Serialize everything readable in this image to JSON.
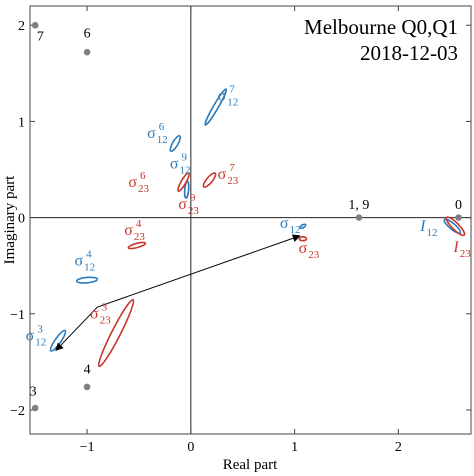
{
  "chart_data": {
    "type": "scatter",
    "title": "Melbourne Q0,Q1",
    "subtitle": "2018-12-03",
    "xlabel": "Real part",
    "ylabel": "Imaginary part",
    "xlim": [
      -1.55,
      2.7
    ],
    "ylim": [
      -2.25,
      2.2
    ],
    "xticks": [
      -1,
      0,
      1,
      2
    ],
    "yticks": [
      -2,
      -1,
      0,
      1,
      2
    ],
    "xtick_labels": [
      "−1",
      "0",
      "1",
      "2"
    ],
    "ytick_labels": [
      "−2",
      "−1",
      "0",
      "1",
      "2"
    ],
    "grid": false,
    "colors": {
      "blue": "#2b7bbb",
      "red": "#c8352a",
      "gray": "#808080",
      "arrow": "#000000"
    },
    "points": [
      {
        "label": "0",
        "x": 2.58,
        "y": 0.0,
        "lx": 2.58,
        "ly": 0.09
      },
      {
        "label": "1, 9",
        "x": 1.62,
        "y": 0.0,
        "lx": 1.62,
        "ly": 0.09
      },
      {
        "label": "6",
        "x": -1.0,
        "y": 1.72,
        "lx": -1.0,
        "ly": 1.87
      },
      {
        "label": "7",
        "x": -1.5,
        "y": 2.0,
        "lx": -1.45,
        "ly": 1.84
      },
      {
        "label": "4",
        "x": -1.0,
        "y": -1.76,
        "lx": -1.0,
        "ly": -1.62
      },
      {
        "label": "3",
        "x": -1.5,
        "y": -1.98,
        "lx": -1.52,
        "ly": -1.85
      }
    ],
    "ellipses": [
      {
        "series": "blue",
        "cx": 0.24,
        "cy": 1.15,
        "rx": 0.2,
        "ry": 0.025,
        "angle": 60
      },
      {
        "series": "blue",
        "cx": -0.15,
        "cy": 0.77,
        "rx": 0.085,
        "ry": 0.028,
        "angle": 60
      },
      {
        "series": "blue",
        "cx": -0.04,
        "cy": 0.29,
        "rx": 0.08,
        "ry": 0.02,
        "angle": 85
      },
      {
        "series": "blue",
        "cx": 1.08,
        "cy": -0.09,
        "rx": 0.03,
        "ry": 0.015,
        "angle": 30
      },
      {
        "series": "blue",
        "cx": 2.52,
        "cy": -0.09,
        "rx": 0.1,
        "ry": 0.03,
        "angle": -40
      },
      {
        "series": "blue",
        "cx": -1.0,
        "cy": -0.65,
        "rx": 0.1,
        "ry": 0.028,
        "angle": 5
      },
      {
        "series": "blue",
        "cx": -1.28,
        "cy": -1.28,
        "rx": 0.12,
        "ry": 0.03,
        "angle": 55
      },
      {
        "series": "red",
        "cx": -0.52,
        "cy": -0.29,
        "rx": 0.085,
        "ry": 0.022,
        "angle": 15
      },
      {
        "series": "red",
        "cx": -0.07,
        "cy": 0.37,
        "rx": 0.1,
        "ry": 0.025,
        "angle": 60
      },
      {
        "series": "red",
        "cx": 0.18,
        "cy": 0.39,
        "rx": 0.085,
        "ry": 0.03,
        "angle": 50
      },
      {
        "series": "red",
        "cx": 1.08,
        "cy": -0.22,
        "rx": 0.035,
        "ry": 0.02,
        "angle": 0
      },
      {
        "series": "red",
        "cx": 2.55,
        "cy": -0.09,
        "rx": 0.12,
        "ry": 0.035,
        "angle": -45
      },
      {
        "series": "red",
        "cx": -0.72,
        "cy": -1.2,
        "rx": 0.36,
        "ry": 0.045,
        "angle": 63
      }
    ],
    "annotations": [
      {
        "series": "blue",
        "base": "σ",
        "sub": "12",
        "sup": "7",
        "x": 0.38,
        "y": 1.22
      },
      {
        "series": "blue",
        "base": "σ",
        "sub": "12",
        "sup": "6",
        "x": -0.3,
        "y": 0.83
      },
      {
        "series": "blue",
        "base": "σ",
        "sub": "12",
        "sup": "9",
        "x": -0.08,
        "y": 0.51
      },
      {
        "series": "red",
        "base": "σ",
        "sub": "23",
        "sup": "6",
        "x": -0.48,
        "y": 0.32
      },
      {
        "series": "red",
        "base": "σ",
        "sub": "23",
        "sup": "9",
        "x": 0.0,
        "y": 0.09
      },
      {
        "series": "red",
        "base": "σ",
        "sub": "23",
        "sup": "7",
        "x": 0.38,
        "y": 0.4
      },
      {
        "series": "red",
        "base": "σ",
        "sub": "23",
        "sup": "4",
        "x": -0.52,
        "y": -0.18
      },
      {
        "series": "blue",
        "base": "σ",
        "sub": "12",
        "sup": "",
        "x": 0.98,
        "y": -0.11
      },
      {
        "series": "red",
        "base": "σ",
        "sub": "23",
        "sup": "",
        "x": 1.16,
        "y": -0.37
      },
      {
        "series": "blue",
        "base": "I",
        "sub": "12",
        "sup": "",
        "x": 2.3,
        "y": -0.14
      },
      {
        "series": "red",
        "base": "I",
        "sub": "23",
        "sup": "",
        "x": 2.62,
        "y": -0.36
      },
      {
        "series": "blue",
        "base": "σ",
        "sub": "12",
        "sup": "4",
        "x": -1.0,
        "y": -0.5
      },
      {
        "series": "red",
        "base": "σ",
        "sub": "23",
        "sup": "3",
        "x": -0.85,
        "y": -1.05
      },
      {
        "series": "blue",
        "base": "σ",
        "sub": "12",
        "sup": "3",
        "x": -1.47,
        "y": -1.28
      }
    ],
    "arrow": {
      "x1": -0.9,
      "y1": -0.93,
      "x2": 1.05,
      "y2": -0.19,
      "x3": -1.3,
      "y3": -1.38
    }
  }
}
